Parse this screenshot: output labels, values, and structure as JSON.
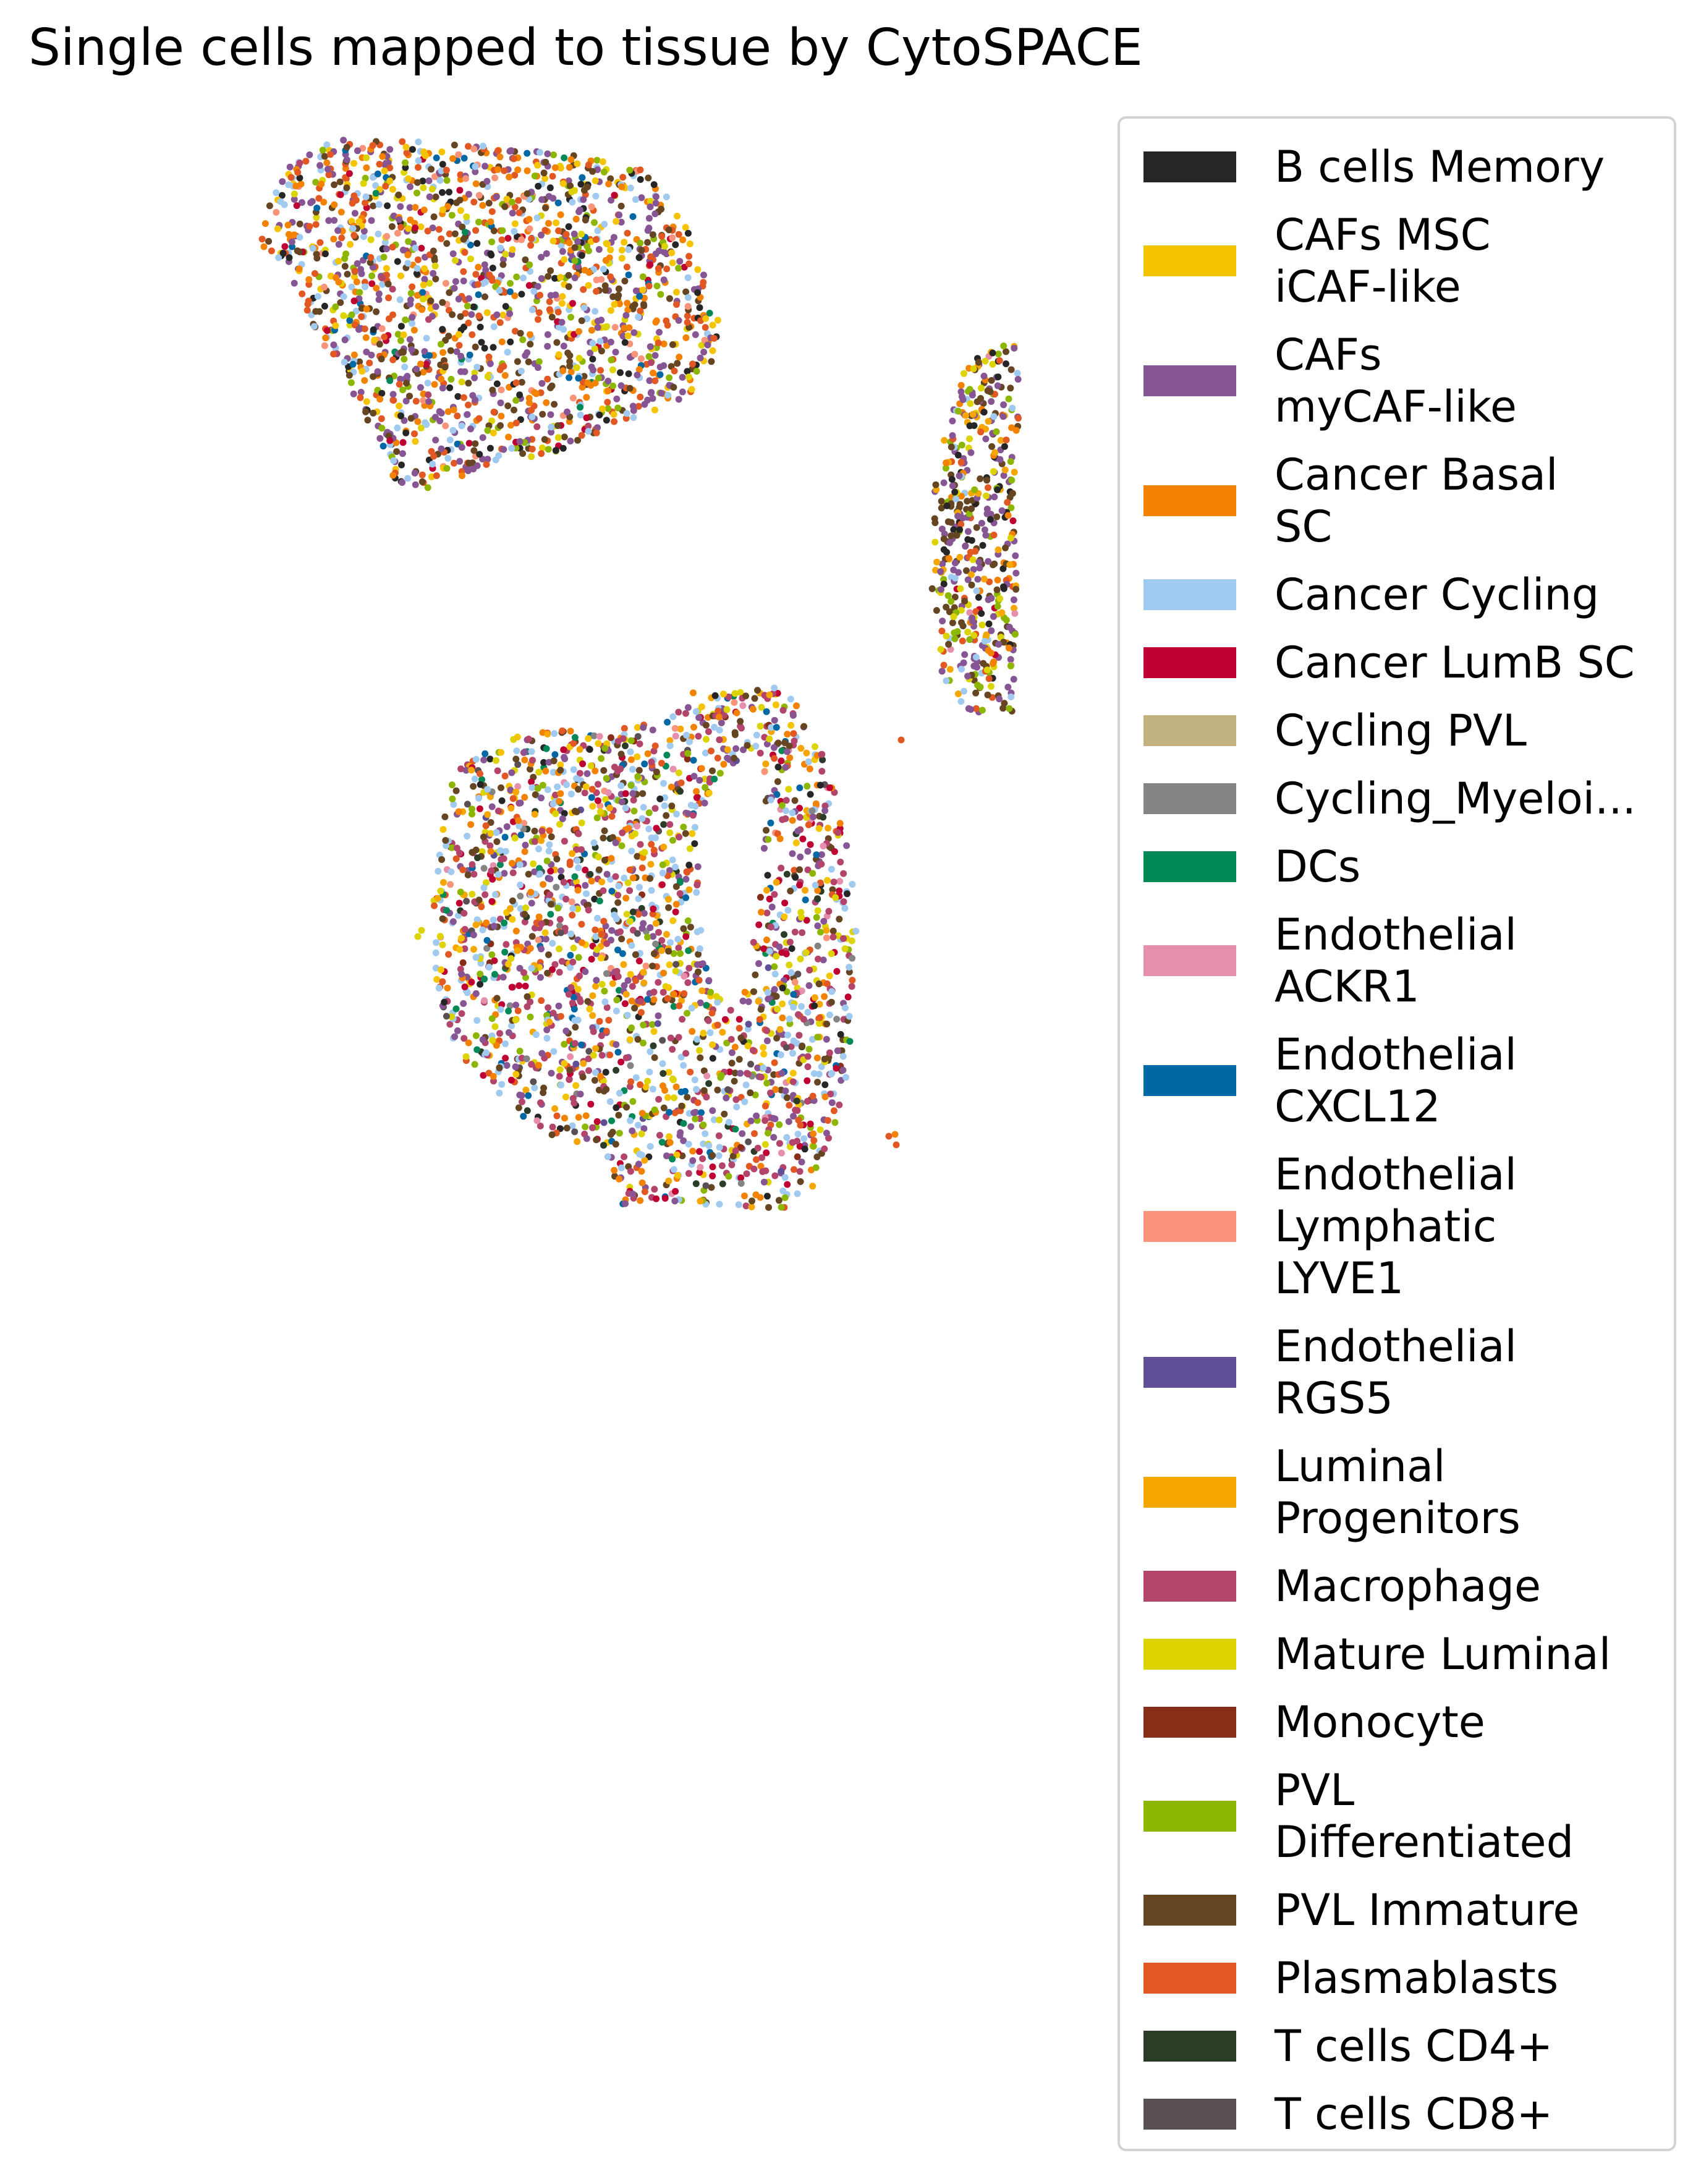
{
  "chart_data": {
    "type": "scatter",
    "title": "Single cells mapped to tissue by CytoSPACE",
    "xlabel": "",
    "ylabel": "",
    "grid": false,
    "axes_visible": false,
    "legend_placement": "right-outside",
    "regions": [
      {
        "name": "upper-left tissue",
        "dominant": [
          "CAFs myCAF-like",
          "Plasmablasts",
          "PVL Immature",
          "Cancer Basal SC",
          "Cancer Cycling"
        ]
      },
      {
        "name": "right strip",
        "dominant": [
          "CAFs myCAF-like",
          "PVL Immature",
          "Luminal Progenitors",
          "PVL Differentiated"
        ]
      },
      {
        "name": "lower tissue",
        "dominant": [
          "Macrophage",
          "Cancer Cycling",
          "CAFs myCAF-like",
          "PVL Immature",
          "Mature Luminal"
        ]
      }
    ],
    "series": [
      {
        "name": "B cells Memory",
        "color": "#262626"
      },
      {
        "name": "CAFs MSC\niCAF-like",
        "color": "#f5c400"
      },
      {
        "name": "CAFs\nmyCAF-like",
        "color": "#875593"
      },
      {
        "name": "Cancer Basal\nSC",
        "color": "#f38200"
      },
      {
        "name": "Cancer Cycling",
        "color": "#a1caf0"
      },
      {
        "name": "Cancer LumB SC",
        "color": "#be0032"
      },
      {
        "name": "Cycling PVL",
        "color": "#c2b280"
      },
      {
        "name": "Cycling_Myeloi...",
        "color": "#848482"
      },
      {
        "name": "DCs",
        "color": "#008856"
      },
      {
        "name": "Endothelial\nACKR1",
        "color": "#e68fac"
      },
      {
        "name": "Endothelial\nCXCL12",
        "color": "#0067a5"
      },
      {
        "name": "Endothelial\nLymphatic\nLYVE1",
        "color": "#f99379"
      },
      {
        "name": "Endothelial\nRGS5",
        "color": "#604e97"
      },
      {
        "name": "Luminal\nProgenitors",
        "color": "#f6a600"
      },
      {
        "name": "Macrophage",
        "color": "#b3446c"
      },
      {
        "name": "Mature Luminal",
        "color": "#dcd300"
      },
      {
        "name": "Monocyte",
        "color": "#882d17"
      },
      {
        "name": "PVL\nDifferentiated",
        "color": "#8db600"
      },
      {
        "name": "PVL Immature",
        "color": "#654522"
      },
      {
        "name": "Plasmablasts",
        "color": "#e25822"
      },
      {
        "name": "T cells CD4+",
        "color": "#2b3d26"
      },
      {
        "name": "T cells CD8+",
        "color": "#5a4f55"
      }
    ]
  }
}
